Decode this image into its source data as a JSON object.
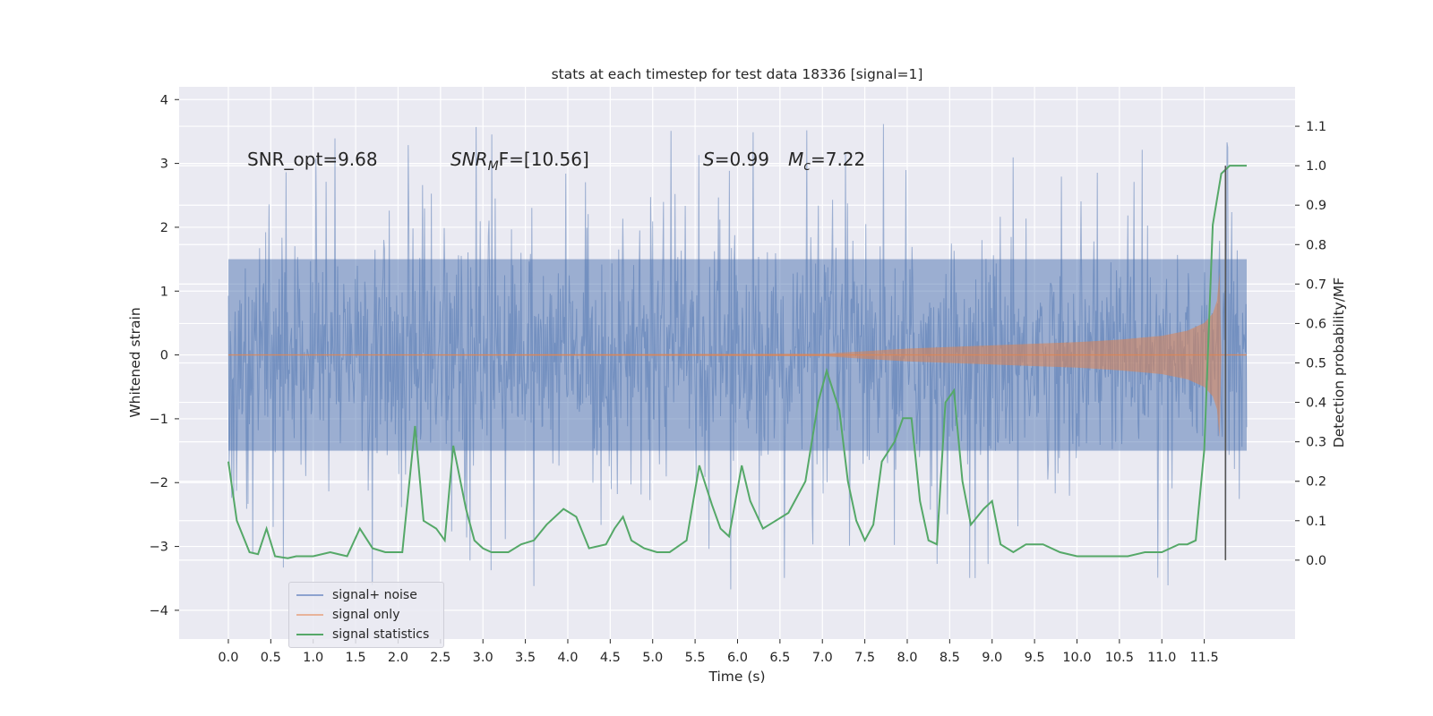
{
  "chart_data": {
    "type": "line",
    "title": "stats at each timestep for test data 18336 [signal=1]",
    "xlabel": "Time (s)",
    "ylabel": "Whitened strain",
    "ylabel_right": "Detection probability/MF",
    "xlim": [
      -0.58,
      12.57
    ],
    "ylim": [
      -4.45,
      4.2
    ],
    "ylim_right": [
      -0.2,
      1.2
    ],
    "x_ticks": [
      "0.0",
      "0.5",
      "1.0",
      "1.5",
      "2.0",
      "2.5",
      "3.0",
      "3.5",
      "4.0",
      "4.5",
      "5.0",
      "5.5",
      "6.0",
      "6.5",
      "7.0",
      "7.5",
      "8.0",
      "8.5",
      "9.0",
      "9.5",
      "10.0",
      "10.5",
      "11.0",
      "11.5"
    ],
    "y_ticks": [
      "−4",
      "−3",
      "−2",
      "−1",
      "0",
      "1",
      "2",
      "3",
      "4"
    ],
    "y_ticks_right": [
      "0.0",
      "0.1",
      "0.2",
      "0.3",
      "0.4",
      "0.5",
      "0.6",
      "0.7",
      "0.8",
      "0.9",
      "1.0",
      "1.1"
    ],
    "grid": true,
    "legend_position": "lower-left",
    "annotations": {
      "snr_opt": "SNR_opt=9.68",
      "snr_mf_label": "SNR",
      "snr_mf_sub": "M",
      "snr_mf_rest": "F=[10.56]",
      "s_label": "S",
      "s_value": "=0.99",
      "mc_label": "M",
      "mc_sub": "c",
      "mc_value": "=7.22"
    },
    "vertical_marker": {
      "x": 11.75,
      "y_range_right": [
        0.0,
        1.0
      ],
      "color": "#555555"
    },
    "series": [
      {
        "name": "signal+ noise",
        "axis": "left",
        "color": "#4c72b0",
        "t_range": [
          0.0,
          12.0
        ],
        "envelope_typical": [
          -1.5,
          1.5
        ],
        "envelope_extreme": [
          -4.0,
          3.85
        ]
      },
      {
        "name": "signal only",
        "axis": "left",
        "color": "#dd8452",
        "t_range": [
          0.0,
          12.0
        ],
        "amplitude_points": {
          "x": [
            0.0,
            7.0,
            8.0,
            9.0,
            10.0,
            10.5,
            11.0,
            11.3,
            11.5,
            11.6,
            11.65,
            11.68,
            11.7,
            12.0
          ],
          "y": [
            0.0,
            0.02,
            0.1,
            0.15,
            0.2,
            0.24,
            0.3,
            0.38,
            0.5,
            0.65,
            0.85,
            1.3,
            0.0,
            0.0
          ]
        }
      },
      {
        "name": "signal statistics",
        "axis": "right",
        "color": "#55a868",
        "x": [
          0.0,
          0.1,
          0.25,
          0.35,
          0.45,
          0.55,
          0.7,
          0.8,
          1.0,
          1.2,
          1.4,
          1.55,
          1.7,
          1.85,
          2.05,
          2.2,
          2.3,
          2.45,
          2.55,
          2.65,
          2.8,
          2.9,
          3.0,
          3.1,
          3.2,
          3.3,
          3.45,
          3.6,
          3.75,
          3.95,
          4.1,
          4.25,
          4.45,
          4.55,
          4.65,
          4.75,
          4.9,
          5.05,
          5.2,
          5.4,
          5.55,
          5.7,
          5.8,
          5.9,
          6.05,
          6.15,
          6.3,
          6.45,
          6.6,
          6.8,
          6.95,
          7.05,
          7.2,
          7.3,
          7.4,
          7.5,
          7.6,
          7.7,
          7.85,
          7.95,
          8.05,
          8.15,
          8.25,
          8.35,
          8.45,
          8.55,
          8.65,
          8.75,
          8.9,
          9.0,
          9.1,
          9.25,
          9.4,
          9.6,
          9.8,
          10.0,
          10.2,
          10.4,
          10.6,
          10.8,
          11.0,
          11.2,
          11.3,
          11.4,
          11.5,
          11.6,
          11.7,
          11.8,
          11.9,
          12.0
        ],
        "values": [
          0.25,
          0.1,
          0.02,
          0.015,
          0.08,
          0.01,
          0.005,
          0.01,
          0.01,
          0.02,
          0.01,
          0.08,
          0.03,
          0.02,
          0.02,
          0.34,
          0.1,
          0.08,
          0.05,
          0.29,
          0.13,
          0.05,
          0.03,
          0.02,
          0.02,
          0.02,
          0.04,
          0.05,
          0.09,
          0.13,
          0.11,
          0.03,
          0.04,
          0.08,
          0.11,
          0.05,
          0.03,
          0.02,
          0.02,
          0.05,
          0.24,
          0.14,
          0.08,
          0.06,
          0.24,
          0.15,
          0.08,
          0.1,
          0.12,
          0.2,
          0.4,
          0.48,
          0.38,
          0.2,
          0.1,
          0.05,
          0.09,
          0.25,
          0.3,
          0.36,
          0.36,
          0.15,
          0.05,
          0.04,
          0.4,
          0.43,
          0.2,
          0.09,
          0.13,
          0.15,
          0.04,
          0.02,
          0.04,
          0.04,
          0.02,
          0.01,
          0.01,
          0.01,
          0.01,
          0.02,
          0.02,
          0.04,
          0.04,
          0.05,
          0.28,
          0.85,
          0.98,
          1.0,
          1.0,
          1.0
        ]
      }
    ]
  }
}
